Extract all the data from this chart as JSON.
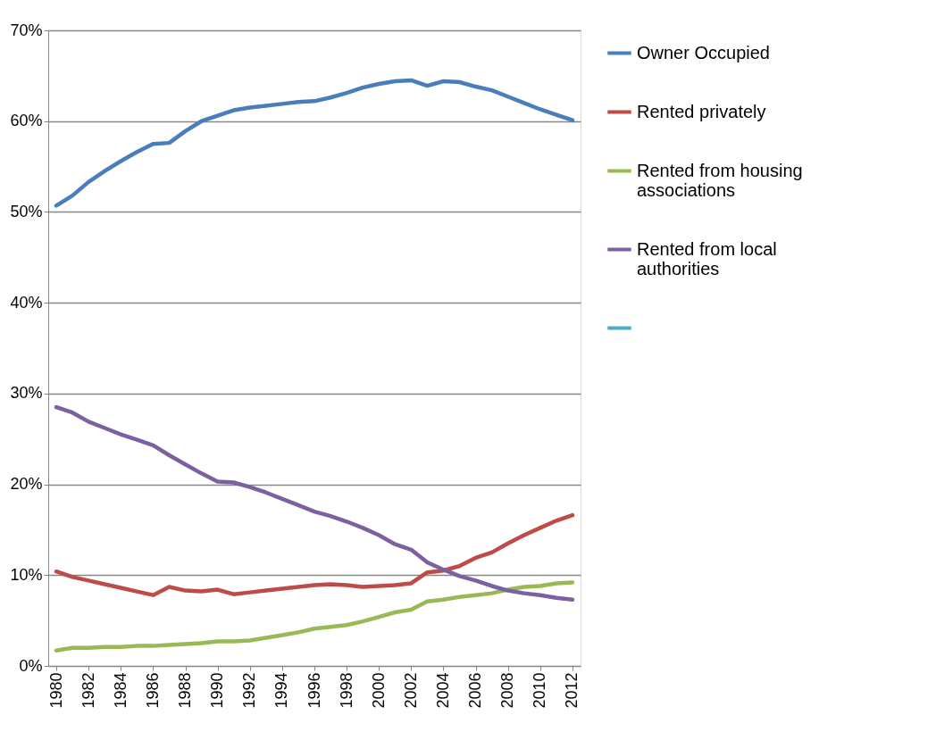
{
  "chart_data": {
    "type": "line",
    "x": [
      1980,
      1981,
      1982,
      1983,
      1984,
      1985,
      1986,
      1987,
      1988,
      1989,
      1990,
      1991,
      1992,
      1993,
      1994,
      1995,
      1996,
      1997,
      1998,
      1999,
      2000,
      2001,
      2002,
      2003,
      2004,
      2005,
      2006,
      2007,
      2008,
      2009,
      2010,
      2011,
      2012
    ],
    "xlim": [
      1979.5,
      2012.5
    ],
    "xticks": [
      1980,
      1982,
      1984,
      1986,
      1988,
      1990,
      1992,
      1994,
      1996,
      1998,
      2000,
      2002,
      2004,
      2006,
      2008,
      2010,
      2012
    ],
    "ylim": [
      0,
      70
    ],
    "yticks": [
      {
        "value": 0,
        "label": "0%"
      },
      {
        "value": 10,
        "label": "10%"
      },
      {
        "value": 20,
        "label": "20%"
      },
      {
        "value": 30,
        "label": "30%"
      },
      {
        "value": 40,
        "label": "40%"
      },
      {
        "value": 50,
        "label": "50%"
      },
      {
        "value": 60,
        "label": "60%"
      },
      {
        "value": 70,
        "label": "70%"
      }
    ],
    "grid": "y",
    "legend": "right",
    "marker": "none",
    "line_style": "solid",
    "series": [
      {
        "name": "Owner Occupied",
        "color": "#4a7ebb",
        "values": [
          50.7,
          51.8,
          53.3,
          54.5,
          55.6,
          56.6,
          57.5,
          57.6,
          58.9,
          60.0,
          60.6,
          61.2,
          61.5,
          61.7,
          61.9,
          62.1,
          62.2,
          62.6,
          63.1,
          63.7,
          64.1,
          64.4,
          64.5,
          63.9,
          64.4,
          64.3,
          63.8,
          63.4,
          62.7,
          62.0,
          61.3,
          60.7,
          60.1
        ]
      },
      {
        "name": "Rented privately",
        "color": "#be4b48",
        "values": [
          10.4,
          9.8,
          9.4,
          9.0,
          8.6,
          8.2,
          7.8,
          8.7,
          8.3,
          8.2,
          8.4,
          7.9,
          8.1,
          8.3,
          8.5,
          8.7,
          8.9,
          9.0,
          8.9,
          8.7,
          8.8,
          8.9,
          9.1,
          10.3,
          10.5,
          11.0,
          11.9,
          12.5,
          13.5,
          14.4,
          15.2,
          16.0,
          16.6
        ]
      },
      {
        "name": "Rented from housing associations",
        "color": "#98b954",
        "values": [
          1.7,
          2.0,
          2.0,
          2.1,
          2.1,
          2.2,
          2.2,
          2.3,
          2.4,
          2.5,
          2.7,
          2.7,
          2.8,
          3.1,
          3.4,
          3.7,
          4.1,
          4.3,
          4.5,
          4.9,
          5.4,
          5.9,
          6.2,
          7.1,
          7.3,
          7.6,
          7.8,
          8.0,
          8.4,
          8.7,
          8.8,
          9.1,
          9.2
        ]
      },
      {
        "name": "Rented from local authorities",
        "color": "#7d60a0",
        "values": [
          28.5,
          27.9,
          26.9,
          26.2,
          25.5,
          24.9,
          24.3,
          23.2,
          22.2,
          21.2,
          20.3,
          20.2,
          19.7,
          19.1,
          18.4,
          17.7,
          17.0,
          16.5,
          15.9,
          15.2,
          14.4,
          13.4,
          12.8,
          11.4,
          10.6,
          9.9,
          9.4,
          8.8,
          8.3,
          8.0,
          7.8,
          7.5,
          7.3
        ]
      },
      {
        "color": "#4bacc6",
        "values": [
          null,
          null,
          null,
          null,
          null,
          null,
          null,
          null,
          null,
          null,
          null,
          null,
          null,
          null,
          null,
          null,
          null,
          null,
          null,
          null,
          null,
          null,
          null,
          null,
          null,
          null,
          null,
          null,
          null,
          null,
          null,
          null,
          null
        ]
      }
    ]
  }
}
